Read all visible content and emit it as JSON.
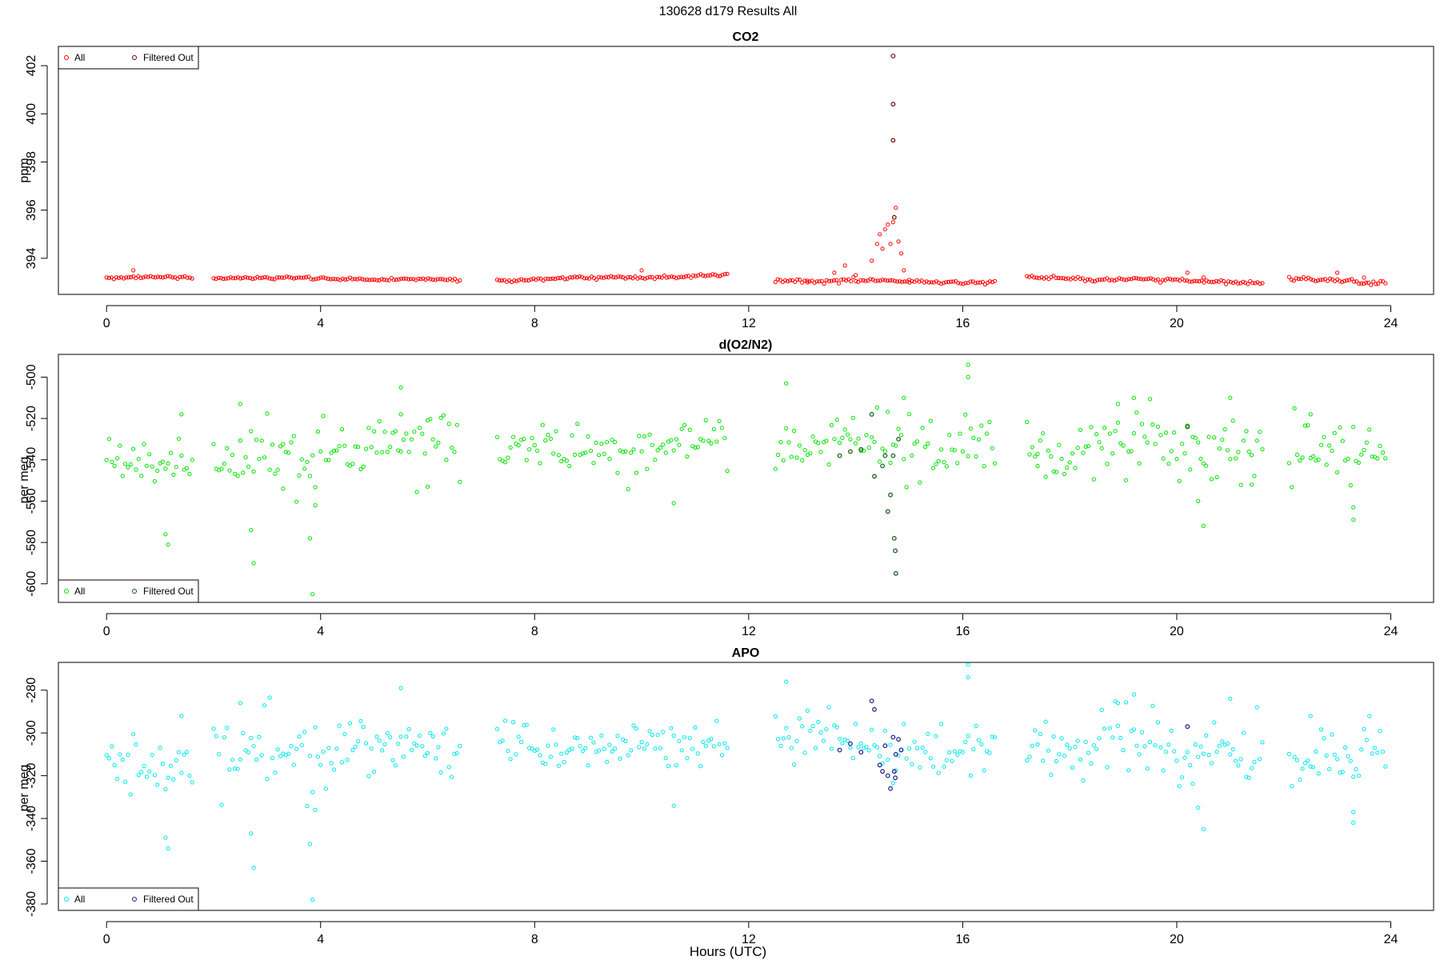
{
  "page_title": "130628   d179   Results All",
  "x_axis_title": "Hours (UTC)",
  "colors": {
    "co2_all": "#ff0000",
    "co2_filtered": "#7a0000",
    "o2_all": "#00e000",
    "o2_filtered": "#0a5a0a",
    "apo_all": "#00e5ee",
    "apo_filtered": "#1a1a8c"
  },
  "chart_data": [
    {
      "type": "scatter",
      "title": "CO2",
      "ylabel": "ppm",
      "xlabel": "",
      "xlim": [
        -0.9,
        24.8
      ],
      "ylim": [
        392.5,
        402.8
      ],
      "xticks": [
        0,
        4,
        8,
        12,
        16,
        20,
        24
      ],
      "yticks": [
        394,
        396,
        398,
        400,
        402
      ],
      "grid": false,
      "legend": {
        "placement": "top-left",
        "labels": [
          "All",
          "Filtered Out"
        ]
      },
      "segments": [
        {
          "x": [
            0.0,
            1.6
          ],
          "y": [
            393.2,
            393.2
          ],
          "noise": 0.08
        },
        {
          "x": [
            2.0,
            6.6
          ],
          "y": [
            393.2,
            393.1
          ],
          "noise": 0.06
        },
        {
          "x": [
            7.3,
            11.6
          ],
          "y": [
            393.1,
            393.3
          ],
          "noise": 0.08
        },
        {
          "x": [
            12.5,
            16.6
          ],
          "y": [
            393.1,
            393.0
          ],
          "noise": 0.1
        },
        {
          "x": [
            17.2,
            21.6
          ],
          "y": [
            393.2,
            393.0
          ],
          "noise": 0.1
        },
        {
          "x": [
            22.1,
            23.9
          ],
          "y": [
            393.1,
            393.0
          ],
          "noise": 0.12
        }
      ],
      "series": [
        {
          "name": "All",
          "x": [
            0.5,
            10.0,
            13.1,
            13.6,
            13.8,
            14.0,
            14.3,
            14.4,
            14.45,
            14.5,
            14.55,
            14.6,
            14.65,
            14.7,
            14.75,
            14.8,
            14.85,
            14.9,
            15.0,
            20.2,
            20.5,
            23.0,
            23.5
          ],
          "y": [
            393.5,
            393.5,
            393.0,
            393.4,
            393.7,
            393.3,
            393.9,
            394.6,
            395.0,
            394.4,
            395.2,
            395.4,
            394.6,
            395.5,
            396.1,
            394.7,
            394.2,
            393.5,
            393.1,
            393.4,
            393.2,
            393.4,
            393.2
          ]
        },
        {
          "name": "Filtered Out",
          "x": [
            14.7,
            14.7,
            14.7,
            14.72
          ],
          "y": [
            402.4,
            400.4,
            398.9,
            395.7
          ]
        }
      ]
    },
    {
      "type": "scatter",
      "title": "d(O2/N2)",
      "ylabel": "per meg",
      "xlabel": "",
      "xlim": [
        -0.9,
        24.8
      ],
      "ylim": [
        -609,
        -489
      ],
      "xticks": [
        0,
        4,
        8,
        12,
        16,
        20,
        24
      ],
      "yticks": [
        -500,
        -520,
        -540,
        -560,
        -580,
        -600
      ],
      "grid": false,
      "legend": {
        "placement": "bottom-left",
        "labels": [
          "All",
          "Filtered Out"
        ]
      },
      "segments": [
        {
          "x": [
            0.0,
            1.6
          ],
          "y": [
            -541,
            -542
          ],
          "noise": 6
        },
        {
          "x": [
            2.0,
            6.6
          ],
          "y": [
            -538,
            -533
          ],
          "noise": 8
        },
        {
          "x": [
            7.3,
            11.6
          ],
          "y": [
            -535,
            -533
          ],
          "noise": 6
        },
        {
          "x": [
            12.5,
            16.6
          ],
          "y": [
            -530,
            -535
          ],
          "noise": 7
        },
        {
          "x": [
            17.2,
            21.6
          ],
          "y": [
            -533,
            -537
          ],
          "noise": 8
        },
        {
          "x": [
            22.1,
            23.9
          ],
          "y": [
            -536,
            -534
          ],
          "noise": 8
        }
      ],
      "series": [
        {
          "name": "All",
          "x": [
            1.1,
            1.15,
            1.4,
            2.5,
            2.7,
            2.75,
            3.3,
            3.8,
            3.85,
            3.9,
            5.5,
            5.5,
            6.0,
            10.6,
            12.7,
            14.9,
            16.1,
            16.1,
            17.4,
            18.9,
            19.2,
            20.4,
            20.5,
            21.0,
            21.4,
            22.5,
            23.3,
            23.3
          ],
          "y": [
            -576,
            -581,
            -518,
            -513,
            -574,
            -590,
            -554,
            -578,
            -605,
            -562,
            -505,
            -518,
            -553,
            -561,
            -503,
            -510,
            -494,
            -500,
            -543,
            -513,
            -510,
            -560,
            -572,
            -510,
            -552,
            -518,
            -563,
            -569
          ]
        },
        {
          "name": "Filtered Out",
          "x": [
            13.7,
            13.9,
            14.1,
            14.3,
            14.35,
            14.5,
            14.55,
            14.6,
            14.65,
            14.7,
            14.72,
            14.74,
            14.75,
            14.8,
            20.2
          ],
          "y": [
            -538,
            -536,
            -535,
            -518,
            -548,
            -543,
            -538,
            -565,
            -557,
            -538,
            -578,
            -584,
            -595,
            -530,
            -524
          ]
        }
      ]
    },
    {
      "type": "scatter",
      "title": "APO",
      "ylabel": "per meg",
      "xlabel": "Hours (UTC)",
      "xlim": [
        -0.9,
        24.8
      ],
      "ylim": [
        -383,
        -267
      ],
      "xticks": [
        0,
        4,
        8,
        12,
        16,
        20,
        24
      ],
      "yticks": [
        -280,
        -300,
        -320,
        -340,
        -360,
        -380
      ],
      "grid": false,
      "legend": {
        "placement": "bottom-left",
        "labels": [
          "All",
          "Filtered Out"
        ]
      },
      "segments": [
        {
          "x": [
            0.0,
            1.6
          ],
          "y": [
            -313,
            -315
          ],
          "noise": 6
        },
        {
          "x": [
            2.0,
            6.6
          ],
          "y": [
            -310,
            -307
          ],
          "noise": 8
        },
        {
          "x": [
            7.3,
            11.6
          ],
          "y": [
            -308,
            -305
          ],
          "noise": 6
        },
        {
          "x": [
            12.5,
            16.6
          ],
          "y": [
            -303,
            -309
          ],
          "noise": 7
        },
        {
          "x": [
            17.2,
            21.6
          ],
          "y": [
            -307,
            -310
          ],
          "noise": 8
        },
        {
          "x": [
            22.1,
            23.9
          ],
          "y": [
            -310,
            -308
          ],
          "noise": 8
        }
      ],
      "series": [
        {
          "name": "All",
          "x": [
            1.1,
            1.15,
            1.4,
            2.5,
            2.7,
            2.75,
            3.8,
            3.85,
            3.9,
            5.5,
            10.6,
            12.7,
            16.1,
            16.1,
            18.9,
            19.2,
            20.4,
            20.5,
            21.0,
            22.5,
            23.3,
            23.3
          ],
          "y": [
            -349,
            -354,
            -292,
            -286,
            -347,
            -363,
            -352,
            -378,
            -336,
            -279,
            -334,
            -276,
            -268,
            -274,
            -286,
            -282,
            -335,
            -345,
            -284,
            -292,
            -337,
            -342
          ]
        },
        {
          "name": "Filtered Out",
          "x": [
            13.7,
            13.9,
            14.1,
            14.3,
            14.35,
            14.45,
            14.5,
            14.55,
            14.6,
            14.65,
            14.7,
            14.72,
            14.74,
            14.75,
            14.8,
            14.85,
            20.2
          ],
          "y": [
            -308,
            -305,
            -309,
            -285,
            -289,
            -315,
            -318,
            -306,
            -320,
            -326,
            -302,
            -318,
            -321,
            -310,
            -303,
            -308,
            -297
          ]
        }
      ]
    }
  ]
}
